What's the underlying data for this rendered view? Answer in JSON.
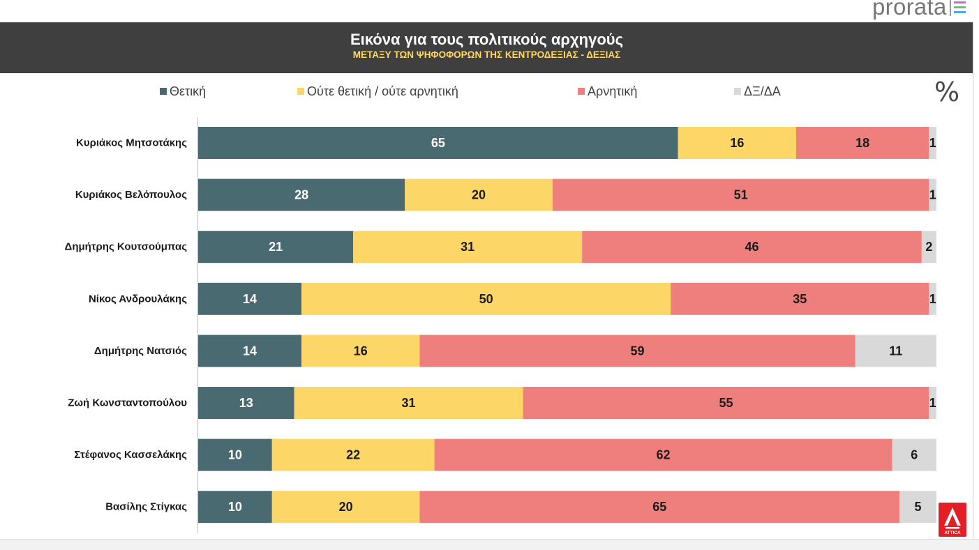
{
  "logos": {
    "brand_top": "prorata",
    "brand_bottom": "ATTICA"
  },
  "theme": {
    "header_bg": "#3f3f3f",
    "title_color": "#ffffff",
    "subtitle_color": "#ffd966",
    "logo_red": "#e31e24",
    "brand_mark_colors": [
      "#a97ccc",
      "#6cc07a",
      "#4da6e8"
    ]
  },
  "chart_data": {
    "type": "bar",
    "orientation": "horizontal",
    "stacked": true,
    "title": "Εικόνα για τους πολιτικούς αρχηγούς",
    "subtitle": "ΜΕΤΑΞΥ ΤΩΝ ΨΗΦΟΦΟΡΩΝ ΤΗΣ ΚΕΝΤΡΟΔΕΞΙΑΣ - ΔΕΞΙΑΣ",
    "unit_label": "%",
    "xlim": [
      0,
      100
    ],
    "grid": false,
    "legend_position": "top",
    "categories": [
      "Κυριάκος Μητσοτάκης",
      "Κυριάκος Βελόπουλος",
      "Δημήτρης Κουτσούμπας",
      "Νίκος Ανδρουλάκης",
      "Δημήτρης Νατσιός",
      "Ζωή Κωνσταντοπούλου",
      "Στέφανος Κασσελάκης",
      "Βασίλης Στίγκας"
    ],
    "series": [
      {
        "name": "Θετική",
        "color": "#4a6a71",
        "label_color": "#ffffff",
        "values": [
          65,
          28,
          21,
          14,
          14,
          13,
          10,
          10
        ]
      },
      {
        "name": "Ούτε θετική / ούτε αρνητική",
        "color": "#fdd668",
        "label_color": "#1a1a1a",
        "values": [
          16,
          20,
          31,
          50,
          16,
          31,
          22,
          20
        ]
      },
      {
        "name": "Αρνητική",
        "color": "#ef7f7d",
        "label_color": "#1a1a1a",
        "values": [
          18,
          51,
          46,
          35,
          59,
          55,
          62,
          65
        ]
      },
      {
        "name": "ΔΞ/ΔΑ",
        "color": "#d9d9d9",
        "label_color": "#1a1a1a",
        "values": [
          1,
          1,
          2,
          1,
          11,
          1,
          6,
          5
        ]
      }
    ]
  }
}
